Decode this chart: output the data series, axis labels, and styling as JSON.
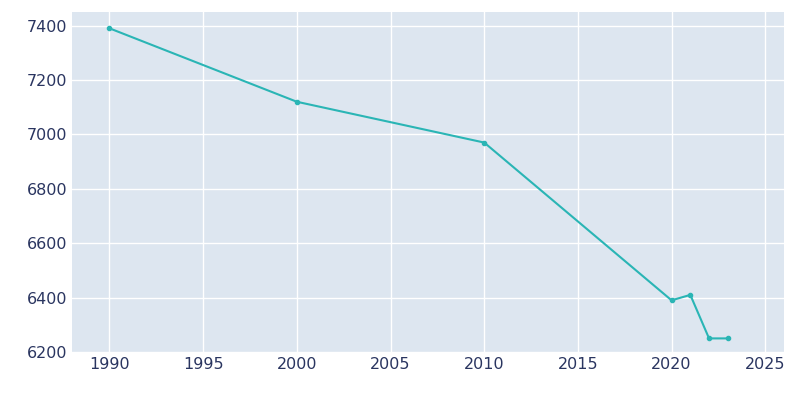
{
  "years": [
    1990,
    2000,
    2010,
    2020,
    2021,
    2022,
    2023
  ],
  "population": [
    7390,
    7120,
    6970,
    6390,
    6410,
    6250,
    6250
  ],
  "line_color": "#2ab5b5",
  "line_width": 1.5,
  "marker": "o",
  "marker_size": 3,
  "bg_color": "#ffffff",
  "plot_bg_color": "#dde6f0",
  "grid_color": "#ffffff",
  "xlim": [
    1988,
    2026
  ],
  "ylim": [
    6200,
    7450
  ],
  "xticks": [
    1990,
    1995,
    2000,
    2005,
    2010,
    2015,
    2020,
    2025
  ],
  "yticks": [
    6200,
    6400,
    6600,
    6800,
    7000,
    7200,
    7400
  ],
  "tick_label_color": "#2a3560",
  "tick_fontsize": 11.5,
  "spine_visible": false
}
